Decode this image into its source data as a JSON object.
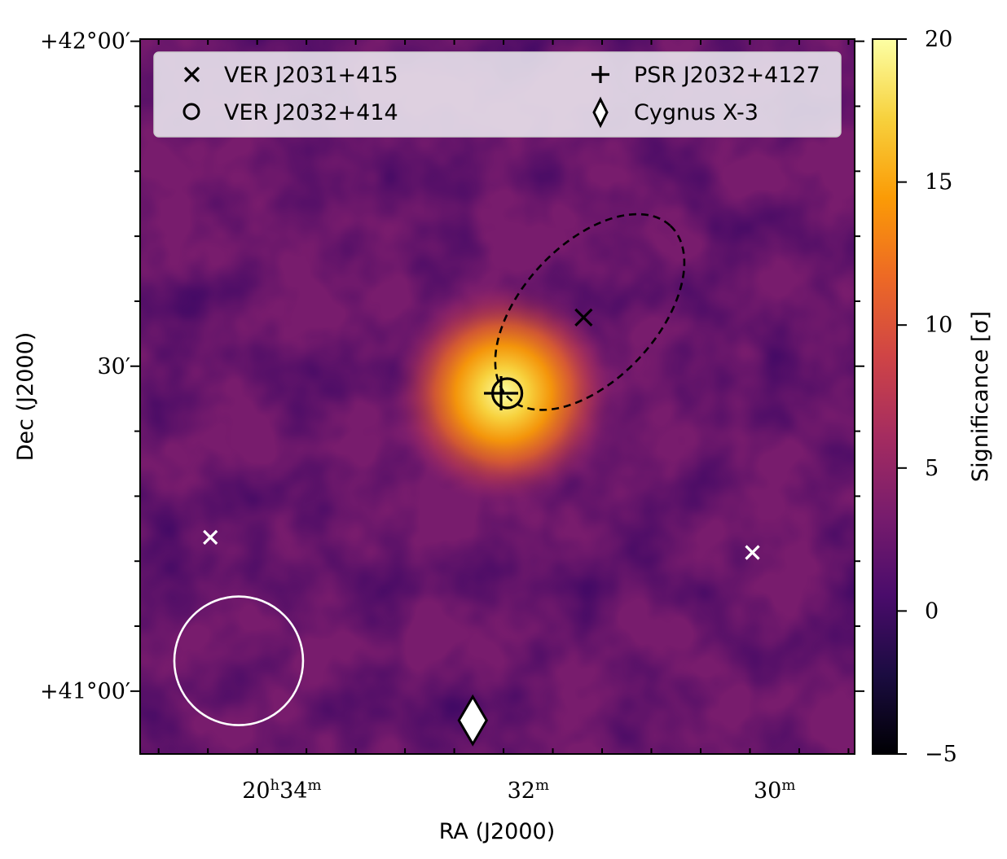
{
  "chart_data": {
    "type": "heatmap",
    "title": "",
    "xlabel": "RA (J2000)",
    "ylabel": "Dec (J2000)",
    "x_ticks": [
      {
        "ra_min": 34,
        "h": "20",
        "m": "34",
        "show_hours": true
      },
      {
        "ra_min": 32,
        "m": "32",
        "show_hours": false
      },
      {
        "ra_min": 30,
        "m": "30",
        "show_hours": false
      }
    ],
    "y_ticks": [
      {
        "dec_arcmin": 2520,
        "label": "+42°00′"
      },
      {
        "dec_arcmin": 2490,
        "label": "30′"
      },
      {
        "dec_arcmin": 2460,
        "label": "+41°00′"
      }
    ],
    "x_range_ra_min": [
      35.15,
      29.35
    ],
    "y_range_dec_arcmin": [
      2454.2,
      2520.2
    ],
    "colorbar": {
      "label": "Significance [σ]",
      "range": [
        -5,
        20
      ],
      "ticks": [
        -5,
        0,
        5,
        10,
        15,
        20
      ],
      "colormap": "inferno",
      "colors": [
        "#000004",
        "#1b0c41",
        "#4a0c6b",
        "#781c6d",
        "#a52c60",
        "#cf4446",
        "#ed6925",
        "#fb9b06",
        "#f7d13d",
        "#fcffa4"
      ]
    },
    "background_significance": 2,
    "sources": [
      {
        "name": "VER J2031+415",
        "marker": "x",
        "ra_min": 31.55,
        "dec_arcmin": 2494.5,
        "color": "#000000"
      },
      {
        "name": "VER J2032+414",
        "marker": "o",
        "ra_min": 32.17,
        "dec_arcmin": 2487.5,
        "color": "#000000"
      },
      {
        "name": "PSR J2032+4127",
        "marker": "+",
        "ra_min": 32.22,
        "dec_arcmin": 2487.5,
        "color": "#000000"
      },
      {
        "name": "Cygnus X-3",
        "marker": "d",
        "ra_min": 32.45,
        "dec_arcmin": 2457.3,
        "color": "#ffffff"
      }
    ],
    "extra_markers": [
      {
        "marker": "x",
        "ra_min": 34.58,
        "dec_arcmin": 2474.2,
        "color": "#ffffff"
      },
      {
        "marker": "x",
        "ra_min": 30.18,
        "dec_arcmin": 2472.8,
        "color": "#ffffff"
      }
    ],
    "extension_ellipse": {
      "center_ra_min": 31.5,
      "center_dec_arcmin": 2495,
      "style": "dashed",
      "color": "#000000"
    },
    "psf_circle": {
      "center_ra_min": 34.35,
      "center_dec_arcmin": 2462.8,
      "color": "#ffffff"
    },
    "hotspot": {
      "ra_min": 32.2,
      "dec_arcmin": 2487.5,
      "peak_significance": 20
    },
    "legend": {
      "placement": "upper",
      "entries": [
        {
          "label": "VER J2031+415",
          "marker": "x"
        },
        {
          "label": "PSR J2032+4127",
          "marker": "+"
        },
        {
          "label": "VER J2032+414",
          "marker": "o"
        },
        {
          "label": "Cygnus X-3",
          "marker": "d"
        }
      ]
    },
    "grid": false
  }
}
